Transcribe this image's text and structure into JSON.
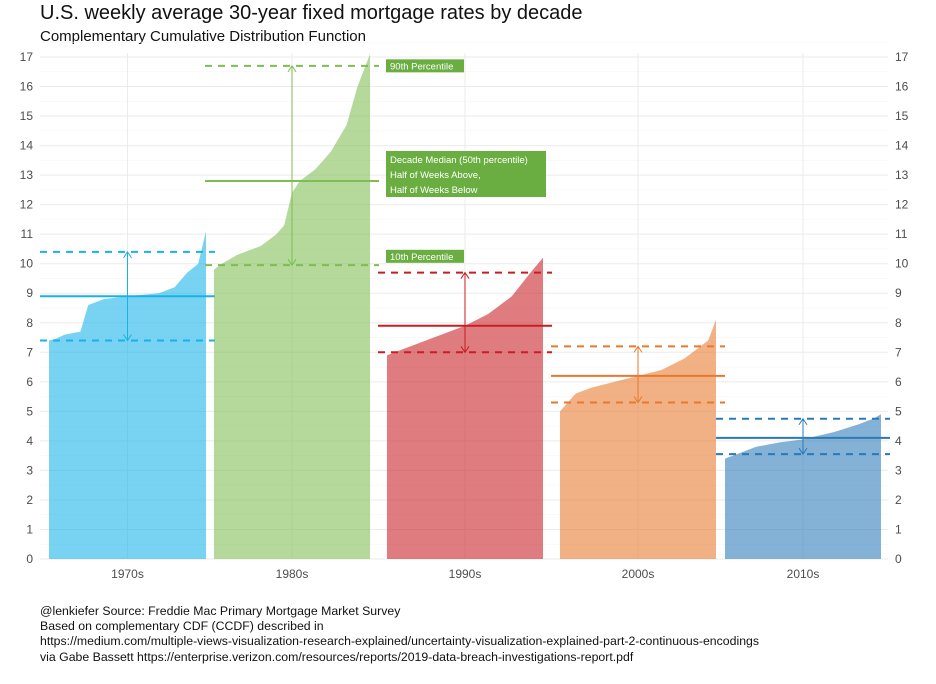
{
  "title": "U.S. weekly average 30-year fixed mortgage rates by decade",
  "subtitle": "Complementary Cumulative Distribution Function",
  "caption": [
    "@lenkiefer Source: Freddie Mac Primary Mortgage Market Survey",
    "Based on complementary CDF (CCDF) described in",
    "https://medium.com/multiple-views-visualization-research-explained/uncertainty-visualization-explained-part-2-continuous-encodings",
    "via Gabe Bassett https://enterprise.verizon.com/resources/reports/2019-data-breach-investigations-report.pdf"
  ],
  "annotations": {
    "p90": "90th Percentile",
    "median": [
      "Decade Median (50th percentile)",
      "Half of Weeks Above,",
      "Half of Weeks Below"
    ],
    "p10": "10th Percentile"
  },
  "colors": {
    "1970s": "#17b2e8",
    "1980s": "#7dbd52",
    "1990s": "#c81d25",
    "2000s": "#e8782b",
    "2010s": "#2a7ab8",
    "annotation_box": "#6aad40"
  },
  "chart_data": {
    "type": "area",
    "title": "U.S. weekly average 30-year fixed mortgage rates by decade",
    "subtitle": "Complementary Cumulative Distribution Function",
    "categories": [
      "1970s",
      "1980s",
      "1990s",
      "2000s",
      "2010s"
    ],
    "ylim": [
      0,
      17
    ],
    "yticks": [
      0,
      1,
      2,
      3,
      4,
      5,
      6,
      7,
      8,
      9,
      10,
      11,
      12,
      13,
      14,
      15,
      16,
      17
    ],
    "y_axis_both_sides": true,
    "grid": true,
    "series": [
      {
        "name": "1970s",
        "ccdf": [
          [
            0,
            7.4
          ],
          [
            0.04,
            7.45
          ],
          [
            0.1,
            7.6
          ],
          [
            0.2,
            7.7
          ],
          [
            0.25,
            8.6
          ],
          [
            0.35,
            8.8
          ],
          [
            0.5,
            8.9
          ],
          [
            0.7,
            9.0
          ],
          [
            0.8,
            9.2
          ],
          [
            0.88,
            9.7
          ],
          [
            0.95,
            10.0
          ],
          [
            1,
            11.1
          ]
        ],
        "p10": 7.4,
        "median": 8.9,
        "p90": 10.4
      },
      {
        "name": "1980s",
        "ccdf": [
          [
            0,
            9.8
          ],
          [
            0.05,
            10.0
          ],
          [
            0.15,
            10.3
          ],
          [
            0.3,
            10.6
          ],
          [
            0.4,
            11.0
          ],
          [
            0.45,
            11.3
          ],
          [
            0.5,
            12.4
          ],
          [
            0.55,
            12.8
          ],
          [
            0.65,
            13.2
          ],
          [
            0.75,
            13.8
          ],
          [
            0.85,
            14.7
          ],
          [
            0.92,
            16.0
          ],
          [
            1,
            17.1
          ]
        ],
        "p10": 9.95,
        "median": 12.8,
        "p90": 16.7
      },
      {
        "name": "1990s",
        "ccdf": [
          [
            0,
            6.9
          ],
          [
            0.05,
            7.0
          ],
          [
            0.15,
            7.2
          ],
          [
            0.3,
            7.5
          ],
          [
            0.5,
            7.9
          ],
          [
            0.65,
            8.3
          ],
          [
            0.8,
            8.9
          ],
          [
            0.92,
            9.7
          ],
          [
            1,
            10.2
          ]
        ],
        "p10": 7.0,
        "median": 7.9,
        "p90": 9.7
      },
      {
        "name": "2000s",
        "ccdf": [
          [
            0,
            5.0
          ],
          [
            0.1,
            5.6
          ],
          [
            0.2,
            5.8
          ],
          [
            0.35,
            6.0
          ],
          [
            0.5,
            6.2
          ],
          [
            0.65,
            6.4
          ],
          [
            0.8,
            6.8
          ],
          [
            0.9,
            7.2
          ],
          [
            0.95,
            7.4
          ],
          [
            1,
            8.1
          ]
        ],
        "p10": 5.3,
        "median": 6.2,
        "p90": 7.2
      },
      {
        "name": "2010s",
        "ccdf": [
          [
            0,
            3.4
          ],
          [
            0.1,
            3.6
          ],
          [
            0.2,
            3.8
          ],
          [
            0.35,
            3.95
          ],
          [
            0.5,
            4.05
          ],
          [
            0.7,
            4.3
          ],
          [
            0.85,
            4.55
          ],
          [
            0.95,
            4.75
          ],
          [
            1,
            4.9
          ]
        ],
        "p10": 3.55,
        "median": 4.1,
        "p90": 4.75
      }
    ]
  }
}
